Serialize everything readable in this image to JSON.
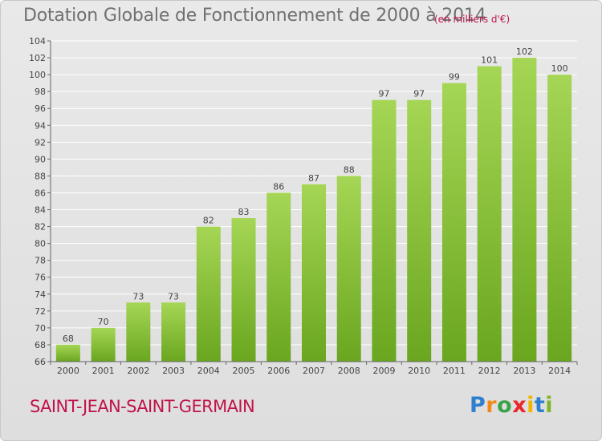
{
  "title": "Dotation Globale de Fonctionnement de 2000 à 2014",
  "subtitle": "(en milliers d'€)",
  "commune": "SAINT-JEAN-SAINT-GERMAIN",
  "logo": {
    "text": "Proxiti",
    "letters": [
      {
        "ch": "P",
        "color": "#2f7fd0"
      },
      {
        "ch": "r",
        "color": "#f08a1c"
      },
      {
        "ch": "o",
        "color": "#3aa34a"
      },
      {
        "ch": "x",
        "color": "#e8282c"
      },
      {
        "ch": "i",
        "color": "#f2b400"
      },
      {
        "ch": "t",
        "color": "#2f7fd0"
      },
      {
        "ch": "i",
        "color": "#7fb52a"
      }
    ]
  },
  "colors": {
    "bar_top": "#a5d655",
    "bar_bottom": "#6aa61f",
    "axis": "#666666",
    "grid": "#ffffff",
    "title": "#707070",
    "accent": "#c0134a"
  },
  "chart_data": {
    "type": "bar",
    "title": "Dotation Globale de Fonctionnement de 2000 à 2014",
    "subtitle": "(en milliers d'€)",
    "categories": [
      "2000",
      "2001",
      "2002",
      "2003",
      "2004",
      "2005",
      "2006",
      "2007",
      "2008",
      "2009",
      "2010",
      "2011",
      "2012",
      "2013",
      "2014"
    ],
    "values": [
      68,
      70,
      73,
      73,
      82,
      83,
      86,
      87,
      88,
      97,
      97,
      99,
      101,
      102,
      100
    ],
    "ylim": [
      66,
      104
    ],
    "yticks": [
      66,
      68,
      70,
      72,
      74,
      76,
      78,
      80,
      82,
      84,
      86,
      88,
      90,
      92,
      94,
      96,
      98,
      100,
      102,
      104
    ],
    "grid": true,
    "data_labels": true
  }
}
